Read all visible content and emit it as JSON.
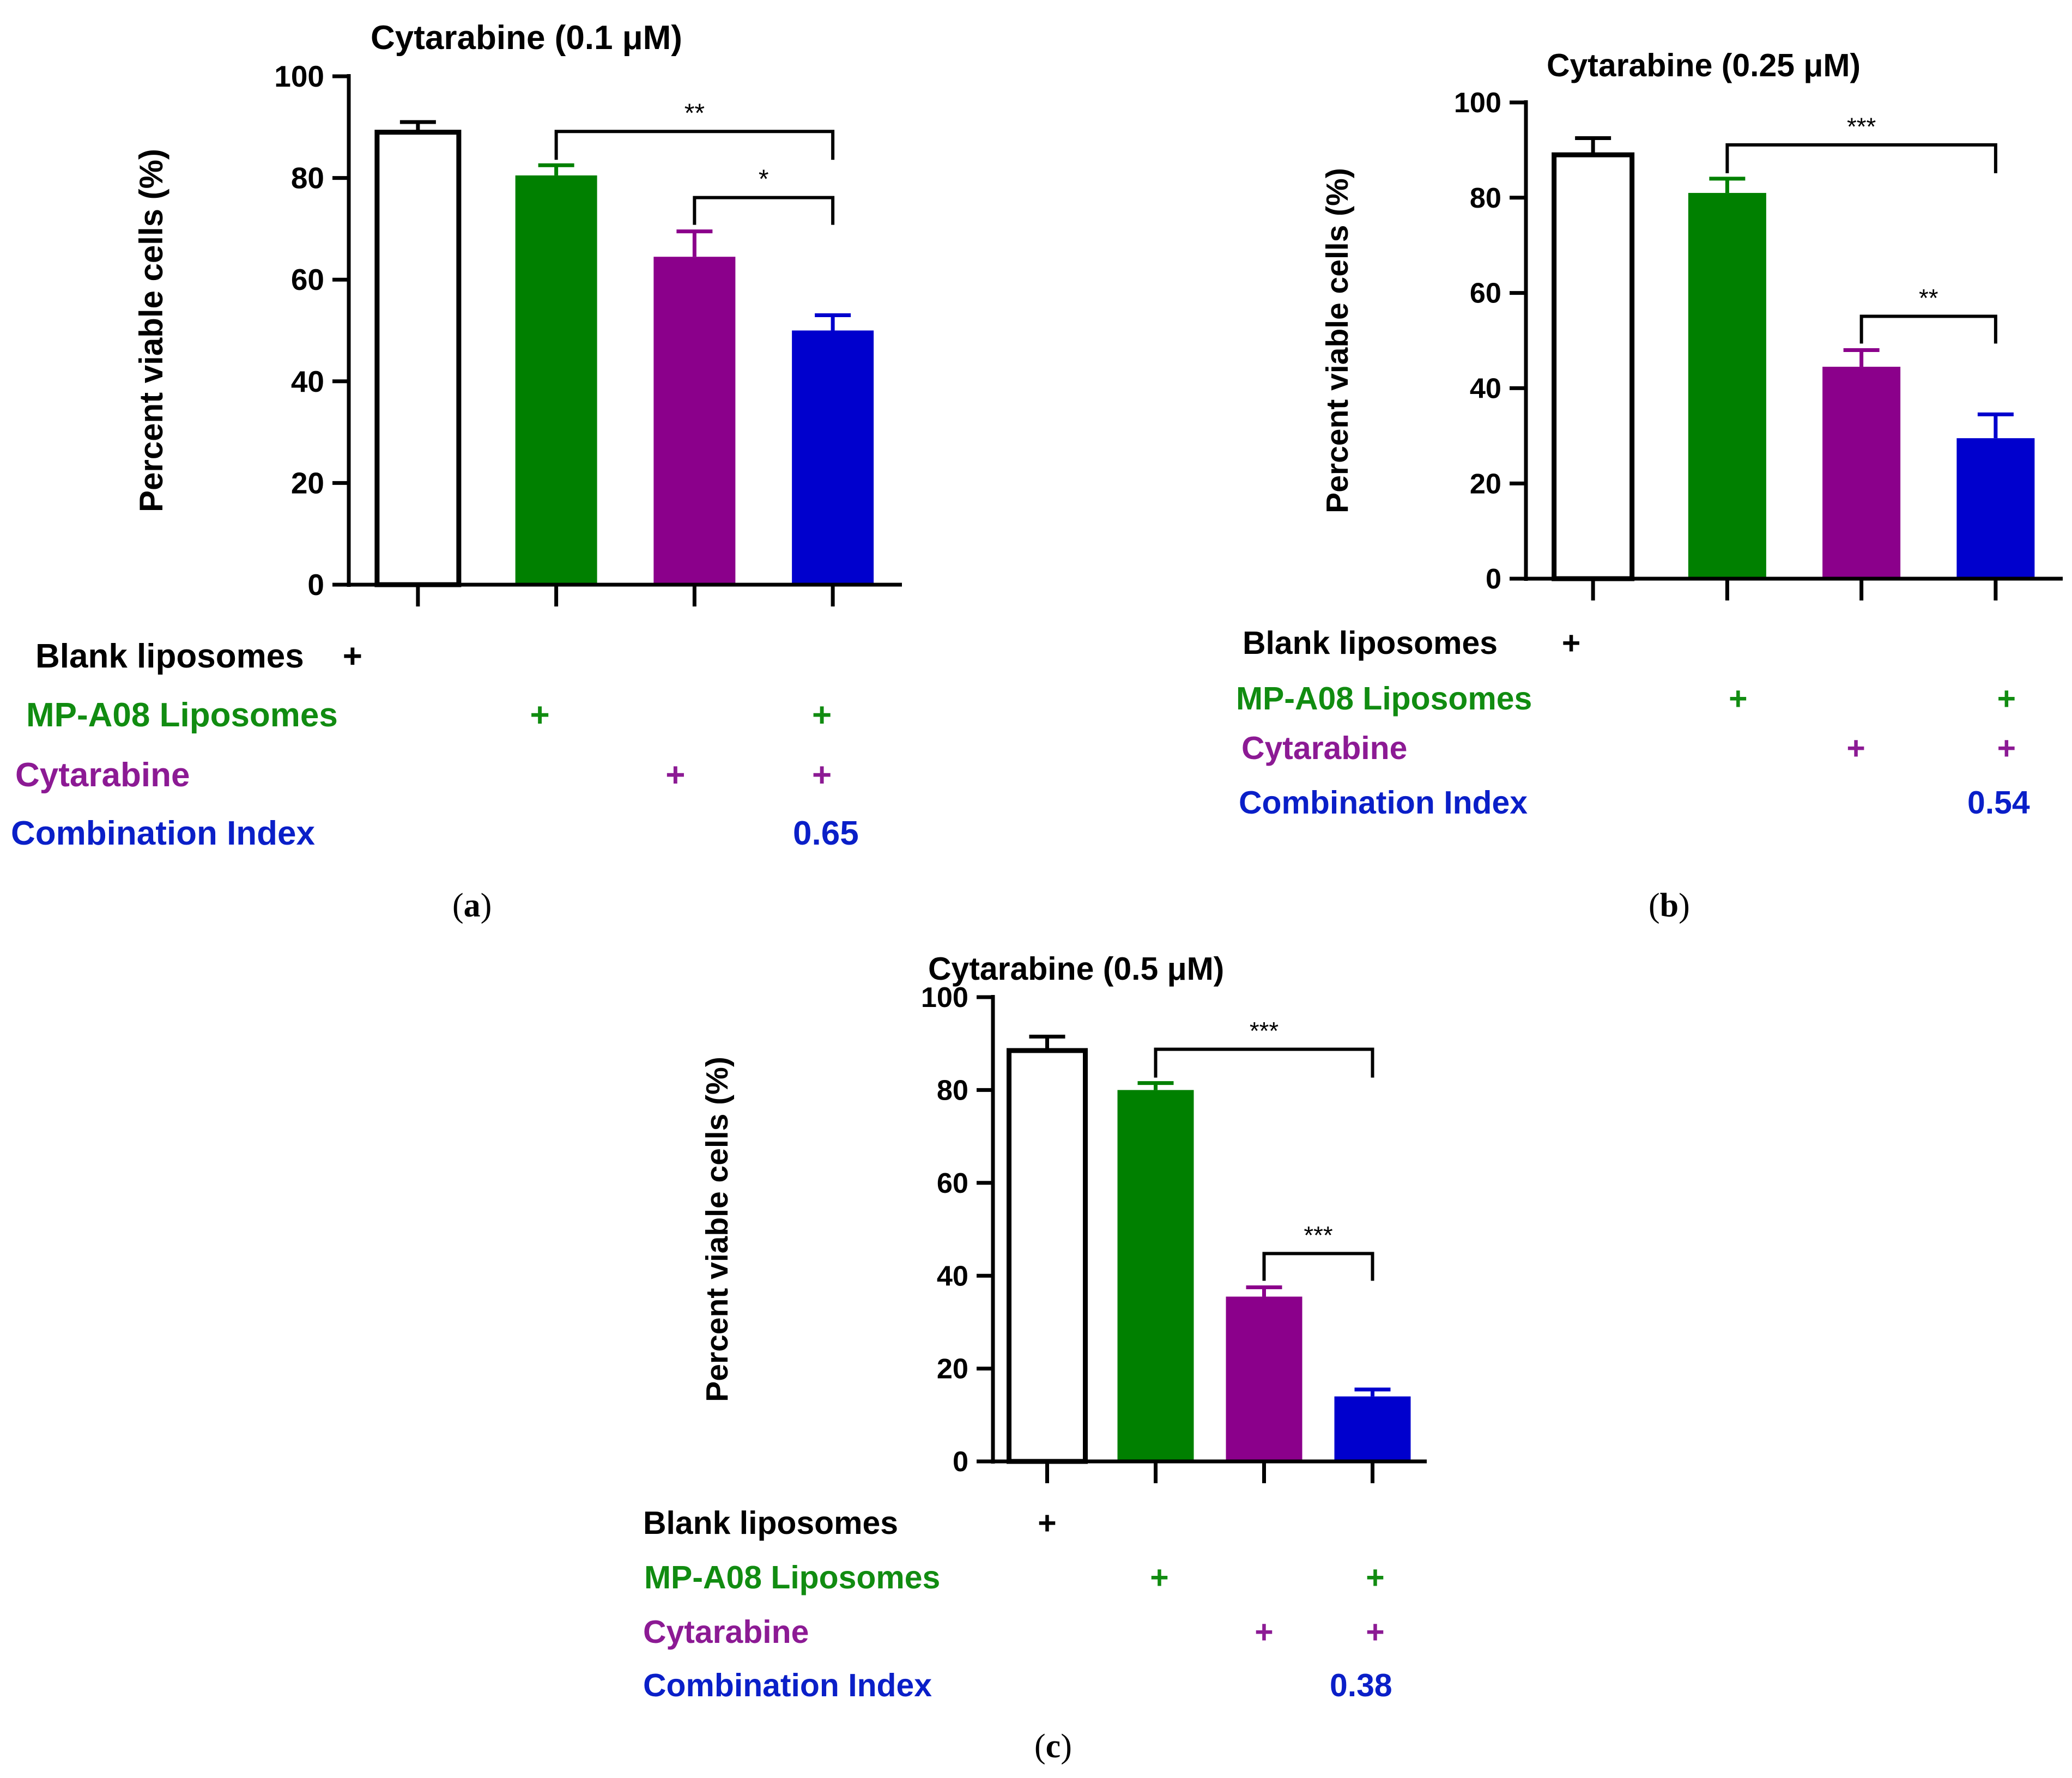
{
  "colors": {
    "axis": "#000000",
    "blank_label": "#000000",
    "mp_a08_label": "#118c11",
    "cytarabine_label": "#8c1a94",
    "ci_label": "#0a1fc8"
  },
  "panels": [
    {
      "id": "a",
      "caption": "(a)",
      "caption_letter": "a",
      "row_labels": {
        "blank": "Blank liposomes",
        "mp_a08": "MP-A08 Liposomes",
        "cytarabine": "Cytarabine",
        "combination_index": "Combination Index"
      },
      "treatment_marks": {
        "blank": [
          "+",
          "",
          "",
          ""
        ],
        "mp_a08": [
          "",
          "+",
          "",
          "+"
        ],
        "cytarabine": [
          "",
          "",
          "+",
          "+"
        ]
      },
      "combination_index_value": "0.65",
      "chart_data": {
        "type": "bar",
        "title": "Cytarabine (0.1 μM)",
        "ylabel": "Percent viable cells (%)",
        "xlabel": "",
        "ylim": [
          0,
          100
        ],
        "yticks": [
          "0",
          "20",
          "40",
          "60",
          "80",
          "100"
        ],
        "grid": false,
        "categories": [
          "Blank liposomes",
          "MP-A08 Liposomes",
          "Cytarabine",
          "MP-A08 Liposomes + Cytarabine"
        ],
        "values": [
          89,
          80.5,
          64.5,
          50
        ],
        "errors": [
          2,
          2,
          5,
          3
        ],
        "bar_colors": [
          "#ffffff",
          "#008000",
          "#8b008b",
          "#0000cd"
        ],
        "significance": [
          {
            "from": 1,
            "to": 3,
            "label": "**"
          },
          {
            "from": 2,
            "to": 3,
            "label": "*"
          }
        ]
      }
    },
    {
      "id": "b",
      "caption": "(b)",
      "caption_letter": "b",
      "row_labels": {
        "blank": "Blank liposomes",
        "mp_a08": "MP-A08 Liposomes",
        "cytarabine": "Cytarabine",
        "combination_index": "Combination Index"
      },
      "treatment_marks": {
        "blank": [
          "+",
          "",
          "",
          ""
        ],
        "mp_a08": [
          "",
          "+",
          "",
          "+"
        ],
        "cytarabine": [
          "",
          "",
          "+",
          "+"
        ]
      },
      "combination_index_value": "0.54",
      "chart_data": {
        "type": "bar",
        "title": "Cytarabine (0.25 μM)",
        "ylabel": "Percent viable cells (%)",
        "xlabel": "",
        "ylim": [
          0,
          100
        ],
        "yticks": [
          "0",
          "20",
          "40",
          "60",
          "80",
          "100"
        ],
        "grid": false,
        "categories": [
          "Blank liposomes",
          "MP-A08 Liposomes",
          "Cytarabine",
          "MP-A08 Liposomes + Cytarabine"
        ],
        "values": [
          89,
          81,
          44.5,
          29.5
        ],
        "errors": [
          3.5,
          3,
          3.5,
          5
        ],
        "bar_colors": [
          "#ffffff",
          "#008000",
          "#8b008b",
          "#0000cd"
        ],
        "significance": [
          {
            "from": 1,
            "to": 3,
            "label": "***"
          },
          {
            "from": 2,
            "to": 3,
            "label": "**"
          }
        ]
      }
    },
    {
      "id": "c",
      "caption": "(c)",
      "caption_letter": "c",
      "row_labels": {
        "blank": "Blank liposomes",
        "mp_a08": "MP-A08 Liposomes",
        "cytarabine": "Cytarabine",
        "combination_index": "Combination Index"
      },
      "treatment_marks": {
        "blank": [
          "+",
          "",
          "",
          ""
        ],
        "mp_a08": [
          "",
          "+",
          "",
          "+"
        ],
        "cytarabine": [
          "",
          "",
          "+",
          "+"
        ]
      },
      "combination_index_value": "0.38",
      "chart_data": {
        "type": "bar",
        "title": "Cytarabine (0.5 μM)",
        "ylabel": "Percent viable cells (%)",
        "xlabel": "",
        "ylim": [
          0,
          100
        ],
        "yticks": [
          "0",
          "20",
          "40",
          "60",
          "80",
          "100"
        ],
        "grid": false,
        "categories": [
          "Blank liposomes",
          "MP-A08 Liposomes",
          "Cytarabine",
          "MP-A08 Liposomes + Cytarabine"
        ],
        "values": [
          88.5,
          80,
          35.5,
          14
        ],
        "errors": [
          3,
          1.5,
          2,
          1.5
        ],
        "bar_colors": [
          "#ffffff",
          "#008000",
          "#8b008b",
          "#0000cd"
        ],
        "significance": [
          {
            "from": 1,
            "to": 3,
            "label": "***"
          },
          {
            "from": 2,
            "to": 3,
            "label": "***"
          }
        ]
      }
    }
  ]
}
